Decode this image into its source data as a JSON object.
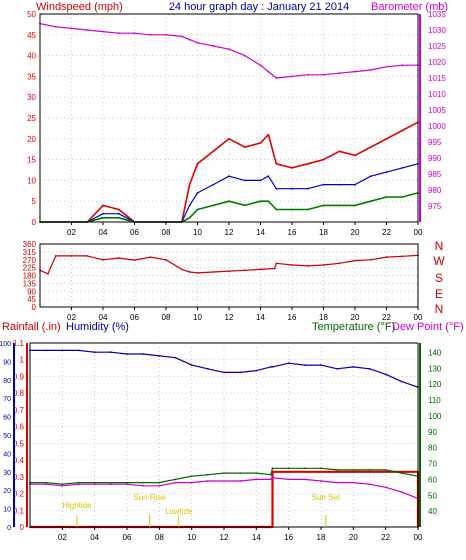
{
  "colors": {
    "background": "#ffffff",
    "frame": "#000000",
    "grid": "#c8c8c8",
    "windspeed": "#e00000",
    "wind_avg": "#0000cc",
    "wind_low": "#007a00",
    "barometer": "#cc00cc",
    "direction": "#cc0000",
    "rainfall": "#dd0000",
    "humidity": "#0000aa",
    "temperature": "#006600",
    "dewpoint": "#cc00cc",
    "events": "#d8c800"
  },
  "header": {
    "left_label": "Windspeed (mph)",
    "title": "24 hour graph day : January 21 2014",
    "right_label": "Barometer (mb)"
  },
  "panel_bottom": {
    "rain_label": "Rainfall (.in)",
    "humidity_label": "Humidity (%)",
    "temperature_label": "Temperature (°F)",
    "dewpoint_label": "Dew Point (°F)"
  },
  "compass_labels": [
    "N",
    "W",
    "S",
    "E",
    "N"
  ],
  "events": [
    {
      "label": "Hightide",
      "hour": 2.9
    },
    {
      "label": "Sun Rise",
      "hour": 7.4
    },
    {
      "label": "Lowtide",
      "hour": 9.2
    },
    {
      "label": "Sun Set",
      "hour": 18.3
    }
  ],
  "chart_data": [
    {
      "type": "line",
      "xlabel": "",
      "xlim": [
        0,
        24
      ],
      "x_ticks": [
        "02",
        "04",
        "06",
        "08",
        "10",
        "12",
        "14",
        "16",
        "18",
        "20",
        "22",
        "00"
      ],
      "y_left": {
        "label": "Windspeed (mph)",
        "lim": [
          0,
          50
        ],
        "ticks": [
          0,
          5,
          10,
          15,
          20,
          25,
          30,
          35,
          40,
          45,
          50
        ]
      },
      "y_right": {
        "label": "Barometer (mb)",
        "lim": [
          970,
          1035
        ],
        "ticks": [
          975,
          980,
          985,
          990,
          995,
          1000,
          1005,
          1010,
          1015,
          1020,
          1025,
          1030,
          1035
        ]
      },
      "grid": true,
      "x": [
        0,
        1,
        2,
        3,
        4,
        5,
        6,
        7,
        8,
        9,
        9.5,
        10,
        11,
        12,
        13,
        14,
        14.5,
        15,
        16,
        17,
        18,
        19,
        20,
        21,
        22,
        23,
        24
      ],
      "series": [
        {
          "name": "Windspeed",
          "axis": "left",
          "values": [
            0,
            0,
            0,
            0,
            4,
            3,
            0,
            0,
            0,
            0,
            9,
            14,
            17,
            20,
            18,
            19,
            21,
            14,
            13,
            14,
            15,
            17,
            16,
            18,
            20,
            22,
            24
          ]
        },
        {
          "name": "Average",
          "axis": "left",
          "values": [
            0,
            0,
            0,
            0,
            2,
            2,
            0,
            0,
            0,
            0,
            4,
            7,
            9,
            11,
            10,
            10,
            11,
            8,
            8,
            8,
            9,
            9,
            9,
            11,
            12,
            13,
            14
          ]
        },
        {
          "name": "Low",
          "axis": "left",
          "values": [
            0,
            0,
            0,
            0,
            1,
            1,
            0,
            0,
            0,
            0,
            1,
            3,
            4,
            5,
            4,
            5,
            5,
            3,
            3,
            3,
            4,
            4,
            4,
            5,
            6,
            6,
            7
          ]
        },
        {
          "name": "Barometer",
          "axis": "right",
          "values": [
            1032,
            1031,
            1030.5,
            1030,
            1029.5,
            1029,
            1029,
            1028.5,
            1028.5,
            1028,
            1027,
            1026,
            1025,
            1024,
            1022,
            1019,
            1017,
            1015,
            1015.5,
            1016,
            1016,
            1016.5,
            1017,
            1017.5,
            1018.5,
            1019,
            1019
          ]
        }
      ]
    },
    {
      "type": "line",
      "xlabel": "",
      "xlim": [
        0,
        24
      ],
      "x_ticks": [
        "02",
        "04",
        "06",
        "08",
        "10",
        "12",
        "14",
        "16",
        "18",
        "20",
        "22",
        "00"
      ],
      "y_left": {
        "label": "",
        "lim": [
          0,
          360
        ],
        "ticks": [
          0,
          45,
          90,
          135,
          180,
          225,
          270,
          315,
          360
        ]
      },
      "grid": true,
      "x": [
        0,
        0.5,
        1,
        2,
        3,
        4,
        5,
        6,
        7,
        8,
        9,
        9.5,
        10,
        11,
        12,
        13,
        14,
        14.9,
        15,
        16,
        17,
        18,
        19,
        20,
        21,
        22,
        23,
        24
      ],
      "series": [
        {
          "name": "Direction",
          "values": [
            210,
            190,
            292,
            292,
            292,
            270,
            280,
            268,
            285,
            270,
            215,
            200,
            195,
            200,
            205,
            210,
            215,
            220,
            250,
            240,
            235,
            240,
            250,
            265,
            270,
            285,
            290,
            295
          ]
        }
      ]
    },
    {
      "type": "line",
      "xlabel": "",
      "xlim": [
        0,
        24
      ],
      "x_ticks": [
        "02",
        "04",
        "06",
        "08",
        "10",
        "12",
        "14",
        "16",
        "18",
        "20",
        "22",
        "00"
      ],
      "y_left": {
        "label": "Rainfall (.in)",
        "lim": [
          0,
          1.1
        ],
        "ticks": [
          0,
          0.1,
          0.2,
          0.3,
          0.4,
          0.5,
          0.6,
          0.7,
          0.8,
          0.9,
          1,
          1.1
        ]
      },
      "y_left2": {
        "label": "Humidity (%)",
        "lim": [
          0,
          100
        ],
        "ticks": [
          0,
          10,
          20,
          30,
          40,
          50,
          60,
          70,
          80,
          90,
          100
        ]
      },
      "y_right": {
        "label": "Temperature (°F)",
        "lim": [
          30,
          146
        ],
        "ticks": [
          40,
          50,
          60,
          70,
          80,
          90,
          100,
          110,
          120,
          130,
          140
        ]
      },
      "grid": true,
      "x": [
        0,
        1,
        2,
        3,
        4,
        5,
        6,
        7,
        8,
        9,
        10,
        11,
        12,
        13,
        14,
        14.9,
        15,
        16,
        17,
        18,
        19,
        20,
        21,
        22,
        23,
        24
      ],
      "series": [
        {
          "name": "Rainfall",
          "axis": "left",
          "values": [
            0,
            0,
            0,
            0,
            0,
            0,
            0,
            0,
            0,
            0,
            0,
            0,
            0,
            0,
            0,
            0,
            0.33,
            0.33,
            0.33,
            0.33,
            0.33,
            0.33,
            0.33,
            0.33,
            0.33,
            0
          ]
        },
        {
          "name": "Humidity",
          "axis": "left2",
          "values": [
            96,
            96,
            96,
            96,
            95,
            95,
            94,
            94,
            93,
            92,
            88,
            86,
            84,
            84,
            85,
            87,
            87,
            89,
            88,
            88,
            86,
            87,
            86,
            83,
            79,
            76
          ]
        },
        {
          "name": "Temperature",
          "axis": "right",
          "values": [
            58,
            58,
            57,
            58,
            58,
            58,
            58,
            58,
            58,
            60,
            62,
            63,
            64,
            64,
            64,
            63,
            67,
            67,
            67,
            67,
            66,
            66,
            66,
            66,
            64,
            62
          ]
        },
        {
          "name": "Dew Point",
          "axis": "right",
          "values": [
            57,
            57,
            56,
            57,
            57,
            57,
            57,
            56,
            56,
            58,
            58,
            59,
            59,
            59,
            60,
            60,
            61,
            60,
            60,
            59,
            58,
            58,
            57,
            55,
            52,
            48
          ]
        }
      ]
    }
  ]
}
